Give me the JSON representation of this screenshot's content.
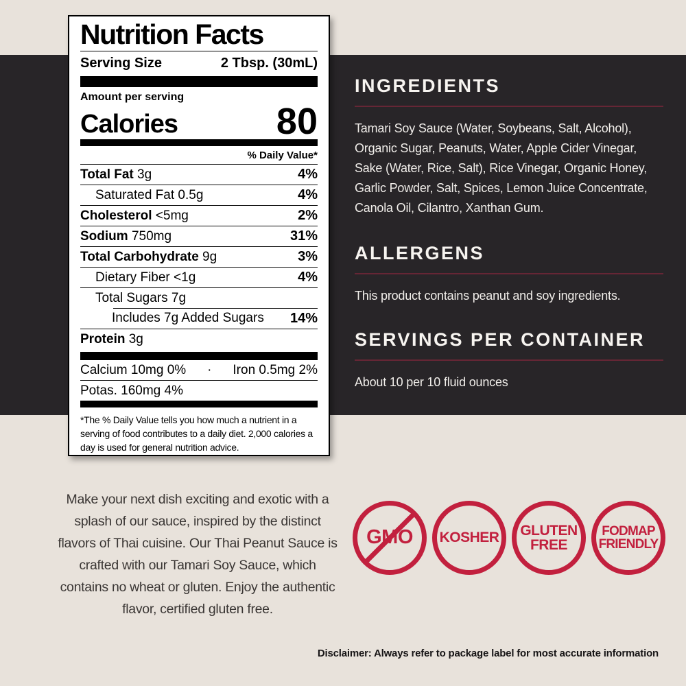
{
  "nutrition_label": {
    "title": "Nutrition Facts",
    "serving_size_label": "Serving Size",
    "serving_size_value": "2 Tbsp. (30mL)",
    "amount_per_serving": "Amount per serving",
    "calories_label": "Calories",
    "calories_value": "80",
    "daily_value_header": "% Daily Value*",
    "rows": [
      {
        "bold": "Total Fat",
        "rest": " 3g",
        "dv": "4%"
      },
      {
        "bold": "",
        "rest": "Saturated Fat 0.5g",
        "dv": "4%"
      },
      {
        "bold": "Cholesterol",
        "rest": " <5mg",
        "dv": "2%"
      },
      {
        "bold": "Sodium",
        "rest": " 750mg",
        "dv": "31%"
      },
      {
        "bold": "Total Carbohydrate",
        "rest": " 9g",
        "dv": "3%"
      },
      {
        "bold": "",
        "rest": "Dietary Fiber <1g",
        "dv": "4%"
      },
      {
        "bold": "",
        "rest": "Total Sugars 7g",
        "dv": ""
      },
      {
        "bold": "",
        "rest": "Includes 7g Added Sugars",
        "dv": "14%"
      },
      {
        "bold": "Protein",
        "rest": " 3g",
        "dv": ""
      }
    ],
    "minerals": {
      "calcium": "Calcium 10mg 0%",
      "separator": "·",
      "iron": "Iron 0.5mg 2%",
      "potassium": "Potas. 160mg 4%"
    },
    "footnote": "*The % Daily Value tells you how much a nutrient in a serving of food contributes to a daily diet. 2,000 calories a day is used for general nutrition advice."
  },
  "sections": {
    "ingredients": {
      "heading": "INGREDIENTS",
      "body": "Tamari Soy Sauce (Water, Soybeans, Salt, Alcohol), Organic Sugar, Peanuts, Water, Apple Cider Vinegar, Sake (Water, Rice, Salt), Rice Vinegar, Organic Honey, Garlic Powder, Salt, Spices, Lemon Juice Concentrate, Canola Oil, Cilantro, Xanthan Gum."
    },
    "allergens": {
      "heading": "ALLERGENS",
      "body": "This product contains peanut and soy ingredients."
    },
    "servings": {
      "heading": "SERVINGS PER CONTAINER",
      "body": "About 10 per 10 fluid ounces"
    }
  },
  "description": "Make your next dish exciting and exotic with a splash of our sauce, inspired by the distinct flavors of Thai cuisine. Our Thai Peanut Sauce is crafted with our Tamari Soy Sauce, which contains no wheat or gluten. Enjoy the authentic flavor, certified gluten free.",
  "badges": [
    {
      "line1": "GMO",
      "line2": ""
    },
    {
      "line1": "KOSHER",
      "line2": ""
    },
    {
      "line1": "GLUTEN",
      "line2": "FREE"
    },
    {
      "line1": "FODMAP",
      "line2": "FRIENDLY"
    }
  ],
  "disclaimer": "Disclaimer: Always refer to package label for most accurate information",
  "colors": {
    "background_cream": "#e8e2db",
    "panel_dark": "#282528",
    "accent_red": "#c2203e",
    "rule_dark_red": "#662635"
  }
}
